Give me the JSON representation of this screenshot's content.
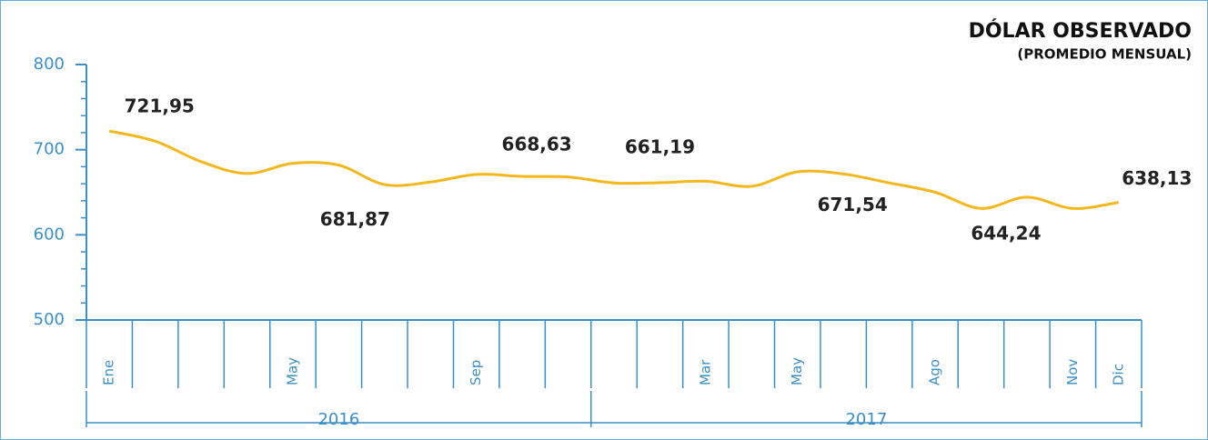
{
  "chart_data": {
    "type": "line",
    "title": "DÓLAR OBSERVADO",
    "subtitle": "(PROMEDIO MENSUAL)",
    "categories": [
      "Ene",
      null,
      null,
      null,
      "May",
      null,
      null,
      null,
      "Sep",
      null,
      null,
      null,
      null,
      "Mar",
      null,
      "May",
      null,
      null,
      "Ago",
      null,
      null,
      "Nov",
      "Dic"
    ],
    "years": [
      "2016",
      "2017"
    ],
    "series": [
      {
        "name": "Dólar observado",
        "color": "#f5b81c",
        "values": [
          721.95,
          710,
          686,
          672,
          684,
          681.87,
          659,
          662,
          671,
          668.63,
          668,
          661,
          661.19,
          663,
          657,
          674,
          671.54,
          661,
          650,
          631,
          644.24,
          631,
          638.13
        ],
        "value_labels": [
          "721,95",
          null,
          null,
          null,
          null,
          "681,87",
          null,
          null,
          null,
          "668,63",
          null,
          null,
          "661,19",
          null,
          null,
          null,
          "671,54",
          null,
          null,
          null,
          "644,24",
          null,
          "638,13"
        ]
      }
    ],
    "ylim": [
      500,
      800
    ],
    "yticks": [
      500,
      600,
      700,
      800
    ]
  }
}
